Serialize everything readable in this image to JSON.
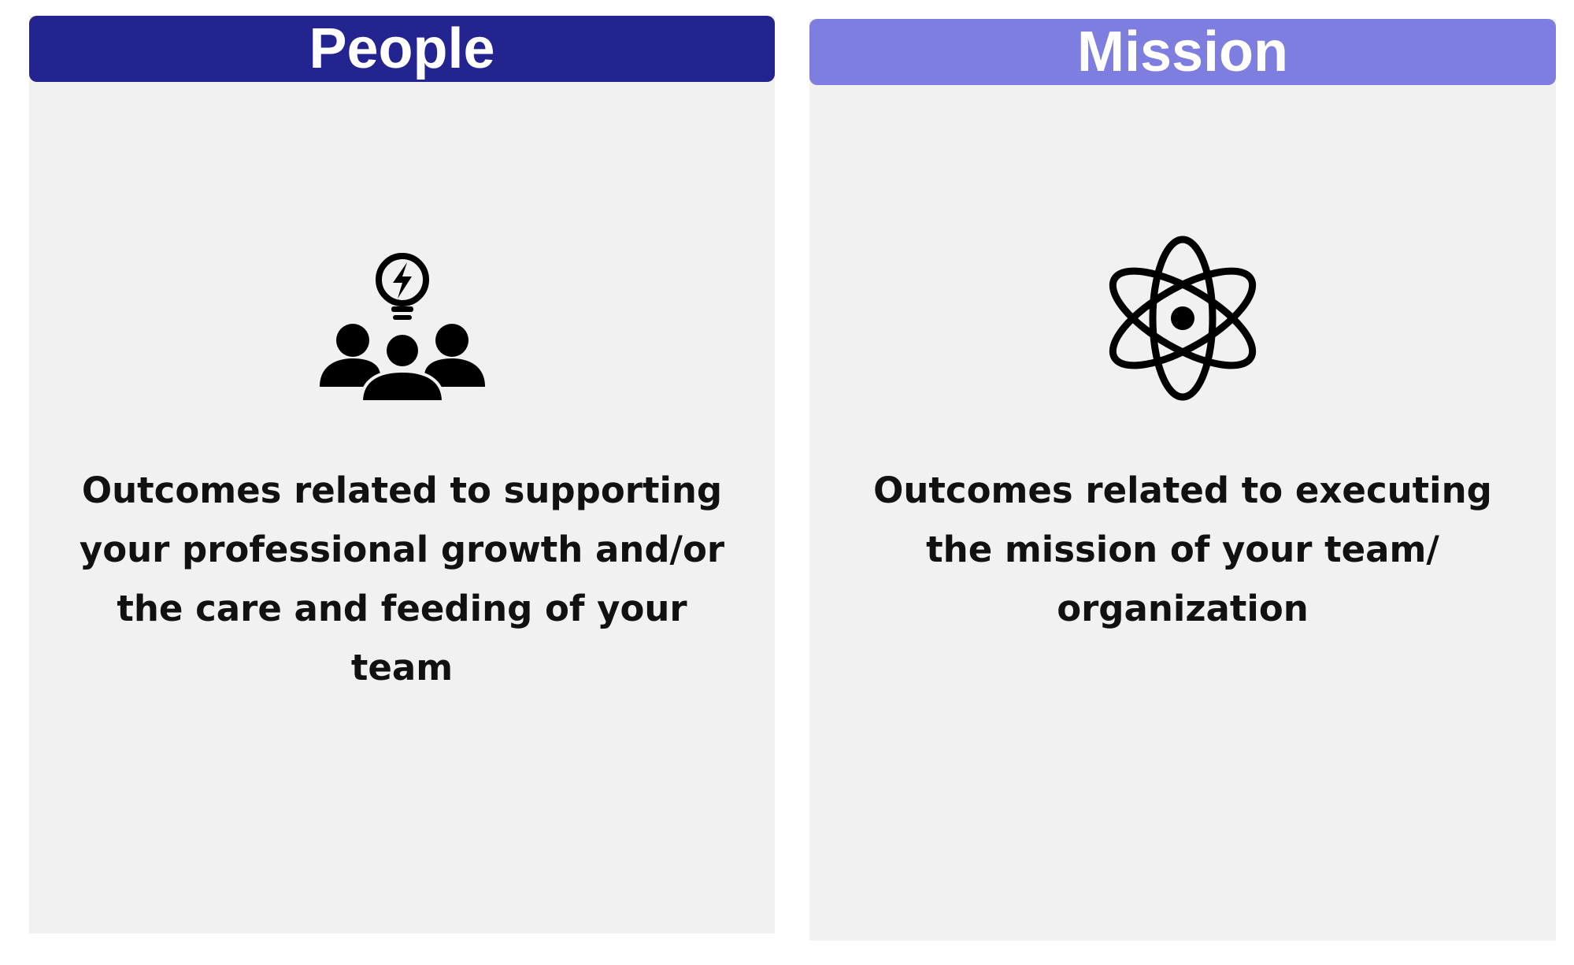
{
  "cards": [
    {
      "title": "People",
      "icon": "team-idea-icon",
      "description": "Outcomes related to supporting your professional growth and/or the care and feeding of your team",
      "header_color": "#232490"
    },
    {
      "title": "Mission",
      "icon": "atom-icon",
      "description": "Outcomes related to executing the mission of your team/ organization",
      "header_color": "#7e7ee0"
    }
  ],
  "colors": {
    "card_background": "#f1f1f1",
    "text": "#111111",
    "header_text": "#ffffff"
  }
}
